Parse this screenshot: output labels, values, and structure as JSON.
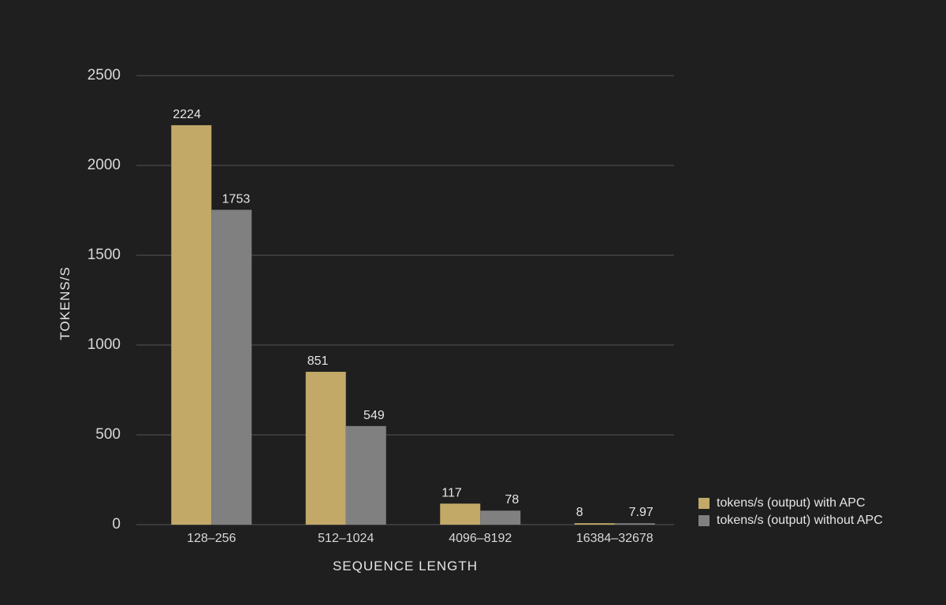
{
  "chart_data": {
    "type": "bar",
    "xlabel": "SEQUENCE LENGTH",
    "ylabel": "TOKENS/S",
    "ylim": [
      0,
      2500
    ],
    "yticks": [
      "0",
      "500",
      "1000",
      "1500",
      "2000",
      "2500"
    ],
    "categories": [
      "128–256",
      "512–1024",
      "4096–8192",
      "16384–32678"
    ],
    "series": [
      {
        "name": "tokens/s (output) with APC",
        "color": "#c2a968",
        "values": [
          2224,
          851,
          117,
          8
        ],
        "labels": [
          "2224",
          "851",
          "117",
          "8"
        ]
      },
      {
        "name": "tokens/s (output) without APC",
        "color": "#808080",
        "values": [
          1753,
          549,
          78,
          7.97
        ],
        "labels": [
          "1753",
          "549",
          "78",
          "7.97"
        ]
      }
    ],
    "grid": true,
    "legend_position": "bottom-right"
  },
  "colors": {
    "background": "#1f1f1f",
    "gridline": "#555555",
    "text": "#e6e6e6"
  }
}
